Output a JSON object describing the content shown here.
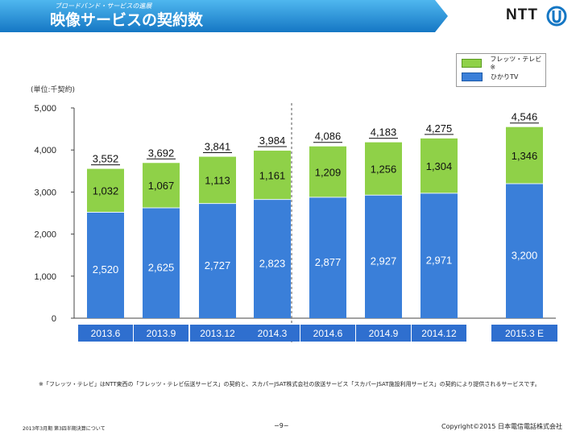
{
  "header": {
    "subtitle": "ブロードバンド・サービスの進展",
    "title": "映像サービスの契約数",
    "logo_text": "NTT"
  },
  "unit_label": "(単位:千契約)",
  "legend": {
    "flets": "フレッツ・テレビ※",
    "hikari": "ひかりTV"
  },
  "footnote": "※「フレッツ・テレビ」はNTT東西の「フレッツ・テレビ伝送サービス」の契約と、スカパーJSAT株式会社の放送サービス「スカパーJSAT施設利用サービス」の契約により提供されるサービスです。",
  "footer": {
    "left": "2013年3月期 第3四半期決算について",
    "page": "−9−",
    "copyright": "Copyright©2015 日本電信電話株式会社"
  },
  "colors": {
    "hikari": "#3a7fd9",
    "flets": "#8fd148",
    "category_box": "#2f6fcf",
    "header": "#1e8fd6"
  },
  "chart_data": {
    "type": "bar",
    "stacked": true,
    "categories": [
      "2013.6",
      "2013.9",
      "2013.12",
      "2014.3",
      "2014.6",
      "2014.9",
      "2014.12",
      "2015.3 E"
    ],
    "series": [
      {
        "name": "ひかりTV",
        "values": [
          2520,
          2625,
          2727,
          2823,
          2877,
          2927,
          2971,
          3200
        ]
      },
      {
        "name": "フレッツ・テレビ※",
        "values": [
          1032,
          1067,
          1113,
          1161,
          1209,
          1256,
          1304,
          1346
        ]
      }
    ],
    "value_labels": {
      "hikari": [
        "2,520",
        "2,625",
        "2,727",
        "2,823",
        "2,877",
        "2,927",
        "2,971",
        "3,200"
      ],
      "flets": [
        "1,032",
        "1,067",
        "1,113",
        "1,161",
        "1,209",
        "1,256",
        "1,304",
        "1,346"
      ],
      "totals": [
        "3,552",
        "3,692",
        "3,841",
        "3,984",
        "4,086",
        "4,183",
        "4,275",
        "4,546"
      ]
    },
    "ylim": [
      0,
      5000
    ],
    "yticks": [
      "0",
      "1,000",
      "2,000",
      "3,000",
      "4,000",
      "5,000"
    ],
    "legend_position": "top-right",
    "grid": false
  }
}
